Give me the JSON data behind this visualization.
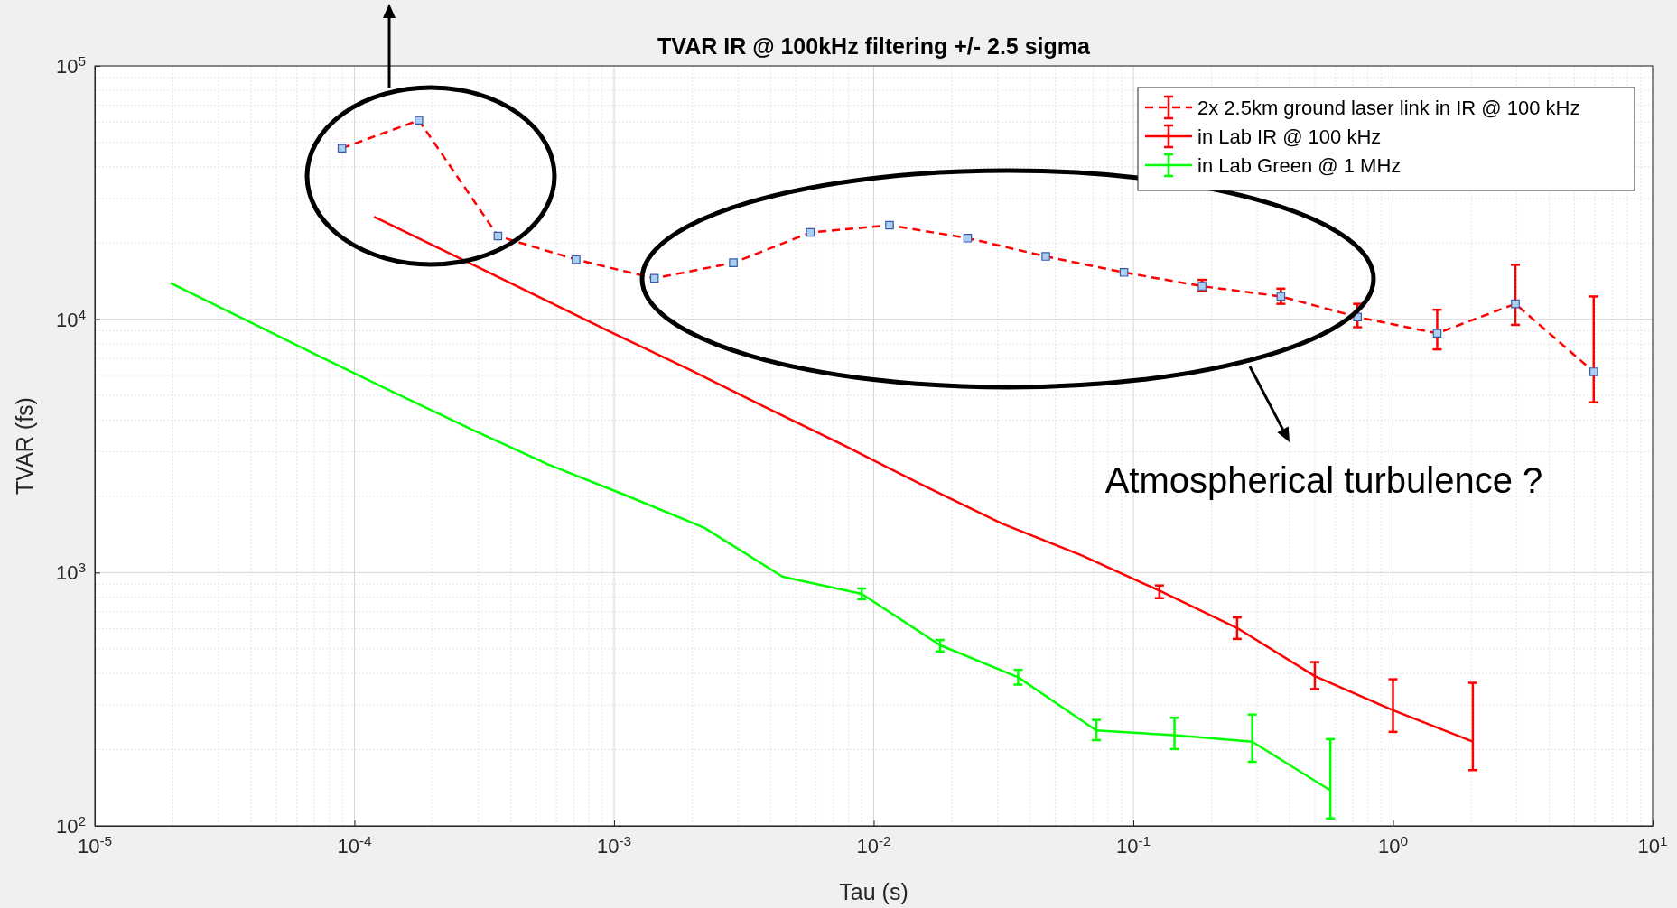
{
  "chart_data": {
    "type": "line",
    "title": "TVAR IR @ 100kHz filtering +/- 2.5 sigma",
    "xlabel": "Tau (s)",
    "ylabel": "TVAR (fs)",
    "log": "xy",
    "grid": true,
    "legend": "top right",
    "xlim": [
      1e-05,
      10
    ],
    "ylim": [
      100,
      100000
    ],
    "xticks": [
      {
        "value": 1e-05,
        "label": "10$^{-5}$"
      },
      {
        "value": 0.0001,
        "label": "10$^{-4}$"
      },
      {
        "value": 0.001,
        "label": "10$^{-3}$"
      },
      {
        "value": 0.01,
        "label": "10$^{-2}$"
      },
      {
        "value": 0.1,
        "label": "10$^{-1}$"
      },
      {
        "value": 1,
        "label": "10$^{0}$"
      },
      {
        "value": 10,
        "label": "10$^{1}$"
      }
    ],
    "yticks": [
      {
        "value": 100,
        "label": "10$^{2}$"
      },
      {
        "value": 1000,
        "label": "10$^{3}$"
      },
      {
        "value": 10000,
        "label": "10$^{4}$"
      },
      {
        "value": 100000,
        "label": "10$^{5}$"
      }
    ],
    "annotations": [
      "Atmospherical turbulence ?"
    ],
    "series": [
      {
        "name": "2x 2.5km ground laser link in IR @ 100 kHz",
        "color": "#ff0000",
        "line_style": "dashed",
        "marker": "square",
        "x": [
          8.95e-05,
          0.000177,
          0.000357,
          0.000714,
          0.00143,
          0.00288,
          0.0057,
          0.0115,
          0.023,
          0.046,
          0.092,
          0.184,
          0.37,
          0.73,
          1.48,
          2.96,
          5.93
        ],
        "values": [
          47300,
          61000,
          21300,
          17200,
          14500,
          16700,
          22000,
          23500,
          20900,
          17700,
          15300,
          13500,
          12300,
          10200,
          8800,
          11500,
          6200
        ],
        "errors": [
          null,
          null,
          null,
          null,
          null,
          null,
          null,
          null,
          null,
          null,
          null,
          [
            12900,
            14300
          ],
          [
            11500,
            13200
          ],
          [
            9300,
            11500
          ],
          [
            7600,
            10900
          ],
          [
            9500,
            16400
          ],
          [
            4700,
            12300
          ]
        ]
      },
      {
        "name": "in Lab IR @ 100 kHz",
        "color": "#ff0000",
        "line_style": "solid",
        "marker": "none",
        "x": [
          0.000119,
          0.00024,
          0.000484,
          0.00097,
          0.00194,
          0.00387,
          0.0078,
          0.0156,
          0.0312,
          0.063,
          0.126,
          0.251,
          0.5,
          1.0,
          2.03
        ],
        "values": [
          25400,
          17900,
          12600,
          8900,
          6340,
          4470,
          3150,
          2200,
          1560,
          1170,
          848,
          604,
          390,
          286,
          215
        ],
        "errors": [
          null,
          null,
          null,
          null,
          null,
          null,
          null,
          null,
          null,
          null,
          [
            792,
            889
          ],
          [
            547,
            665
          ],
          [
            347,
            443
          ],
          [
            235,
            379
          ],
          [
            166,
            367
          ]
        ]
      },
      {
        "name": "in Lab Green @ 1 MHz",
        "color": "#00ff00",
        "line_style": "solid",
        "marker": "none",
        "x": [
          1.96e-05,
          6.85e-05,
          0.000138,
          0.000277,
          0.000558,
          0.00112,
          0.00223,
          0.00446,
          0.00899,
          0.018,
          0.036,
          0.072,
          0.144,
          0.287,
          0.574
        ],
        "values": [
          13900,
          7390,
          5210,
          3710,
          2670,
          2010,
          1500,
          962,
          824,
          517,
          386,
          238,
          228,
          215,
          138
        ],
        "errors": [
          null,
          null,
          null,
          null,
          null,
          null,
          null,
          null,
          [
            785,
            865
          ],
          [
            488,
            542
          ],
          [
            361,
            413
          ],
          [
            218,
            262
          ],
          [
            201,
            267
          ],
          [
            179,
            275
          ],
          [
            107,
            220
          ]
        ]
      }
    ]
  }
}
